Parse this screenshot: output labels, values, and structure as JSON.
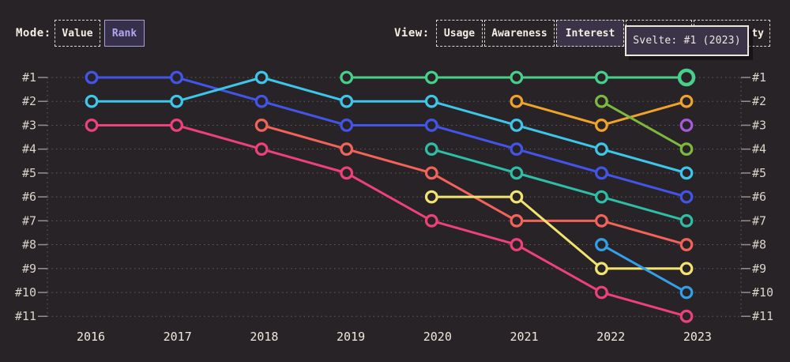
{
  "theme": {
    "background": "#282327",
    "panel": "#3b3347",
    "cream": "#f3efe4",
    "mode_selected_bg": "#37304a",
    "mode_selected_border": "#a79fd8",
    "mode_selected_text": "#b5a6f2"
  },
  "controls": {
    "mode": {
      "label": "Mode:",
      "options": [
        {
          "label": "Value",
          "selected": false
        },
        {
          "label": "Rank",
          "selected": true
        }
      ]
    },
    "view": {
      "label": "View:",
      "options": [
        {
          "label": "Usage",
          "selected": false
        },
        {
          "label": "Awareness",
          "selected": false
        },
        {
          "label": "Interest",
          "selected": true
        },
        {
          "label": "",
          "selected": false
        },
        {
          "label": "ty",
          "selected": false
        }
      ]
    }
  },
  "tooltip": {
    "text": "Svelte: #1 (2023)"
  },
  "chart_data": {
    "type": "line",
    "subtype": "bump-rank-chart",
    "title": "",
    "xlabel": "",
    "ylabel": "",
    "grid": "dotted-horizontal",
    "legend_position": "none",
    "years": [
      2016,
      2017,
      2018,
      2019,
      2020,
      2021,
      2022,
      2023
    ],
    "rank_labels": [
      "#1",
      "#2",
      "#3",
      "#4",
      "#5",
      "#6",
      "#7",
      "#8",
      "#9",
      "#10",
      "#11"
    ],
    "rank_axis_sides": [
      "left",
      "right"
    ],
    "series": [
      {
        "id": "blue",
        "color": "#4355e8",
        "points": [
          [
            2016,
            1
          ],
          [
            2017,
            1
          ],
          [
            2018,
            2
          ],
          [
            2019,
            3
          ],
          [
            2020,
            3
          ],
          [
            2021,
            4
          ],
          [
            2022,
            5
          ],
          [
            2023,
            6
          ]
        ]
      },
      {
        "id": "cyan",
        "color": "#3ec6e8",
        "points": [
          [
            2016,
            2
          ],
          [
            2017,
            2
          ],
          [
            2018,
            1
          ],
          [
            2019,
            2
          ],
          [
            2020,
            2
          ],
          [
            2021,
            3
          ],
          [
            2022,
            4
          ],
          [
            2023,
            5
          ]
        ]
      },
      {
        "id": "pink",
        "color": "#ed4179",
        "points": [
          [
            2016,
            3
          ],
          [
            2017,
            3
          ],
          [
            2018,
            4
          ],
          [
            2019,
            5
          ],
          [
            2020,
            7
          ],
          [
            2021,
            8
          ],
          [
            2022,
            10
          ],
          [
            2023,
            11
          ]
        ]
      },
      {
        "id": "salmon",
        "color": "#f2635a",
        "points": [
          [
            2018,
            3
          ],
          [
            2019,
            4
          ],
          [
            2020,
            5
          ],
          [
            2021,
            7
          ],
          [
            2022,
            7
          ],
          [
            2023,
            8
          ]
        ]
      },
      {
        "id": "green",
        "color": "#48d08a",
        "points": [
          [
            2019,
            1
          ],
          [
            2020,
            1
          ],
          [
            2021,
            1
          ],
          [
            2022,
            1
          ],
          [
            2023,
            1
          ]
        ]
      },
      {
        "id": "teal",
        "color": "#2fbda6",
        "points": [
          [
            2020,
            4
          ],
          [
            2021,
            5
          ],
          [
            2022,
            6
          ],
          [
            2023,
            7
          ]
        ]
      },
      {
        "id": "yellow",
        "color": "#f2e370",
        "points": [
          [
            2020,
            6
          ],
          [
            2021,
            6
          ],
          [
            2022,
            9
          ],
          [
            2023,
            9
          ]
        ]
      },
      {
        "id": "orange",
        "color": "#f0a32b",
        "points": [
          [
            2021,
            2
          ],
          [
            2022,
            3
          ],
          [
            2023,
            2
          ]
        ]
      },
      {
        "id": "lime",
        "color": "#7cb93c",
        "points": [
          [
            2022,
            2
          ],
          [
            2023,
            4
          ]
        ]
      },
      {
        "id": "sky",
        "color": "#339fe8",
        "points": [
          [
            2022,
            8
          ],
          [
            2023,
            10
          ]
        ]
      },
      {
        "id": "purple",
        "color": "#a55cd9",
        "points": [
          [
            2023,
            3
          ]
        ]
      }
    ],
    "highlight": {
      "series": "green",
      "year": 2023,
      "tooltip": "Svelte: #1 (2023)"
    }
  }
}
